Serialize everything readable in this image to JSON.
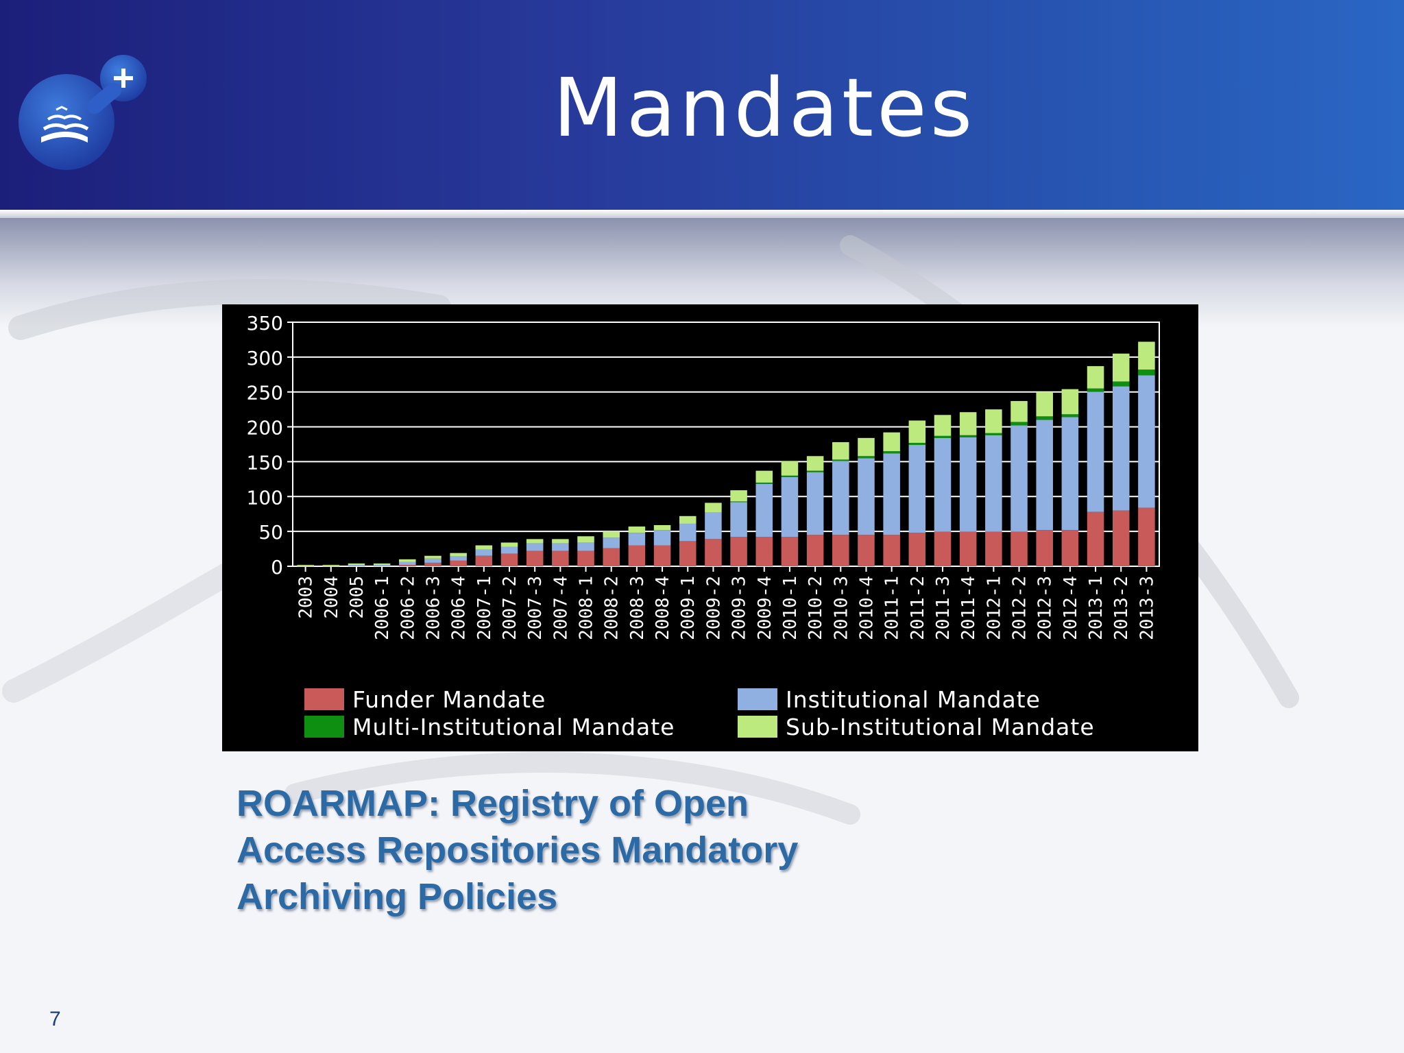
{
  "slide": {
    "title": "Mandates",
    "caption": "ROARMAP: Registry of Open Access Repositories Mandatory Archiving Policies",
    "page_number": "7"
  },
  "colors": {
    "funder": "#c85a5a",
    "institutional": "#8fb0e0",
    "multi_institutional": "#0f8f12",
    "sub_institutional": "#bdea7e",
    "header_start": "#1c1f7a",
    "header_end": "#2a66c4",
    "caption": "#2c6aa6"
  },
  "logo": {
    "icon": "book-with-plus-icon"
  },
  "chart_data": {
    "type": "bar",
    "stacked": true,
    "title": "",
    "xlabel": "",
    "ylabel": "",
    "ylim": [
      0,
      350
    ],
    "yticks": [
      0,
      50,
      100,
      150,
      200,
      250,
      300,
      350
    ],
    "grid": true,
    "legend_position": "bottom",
    "categories": [
      "2003",
      "2004",
      "2005",
      "2006-1",
      "2006-2",
      "2006-3",
      "2006-4",
      "2007-1",
      "2007-2",
      "2007-3",
      "2007-4",
      "2008-1",
      "2008-2",
      "2008-3",
      "2008-4",
      "2009-1",
      "2009-2",
      "2009-3",
      "2009-4",
      "2010-1",
      "2010-2",
      "2010-3",
      "2010-4",
      "2011-1",
      "2011-2",
      "2011-3",
      "2011-4",
      "2012-1",
      "2012-2",
      "2012-3",
      "2012-4",
      "2013-1",
      "2013-2",
      "2013-3"
    ],
    "series": [
      {
        "name": "Funder Mandate",
        "color_key": "funder",
        "values": [
          0,
          0,
          0,
          0,
          2,
          5,
          8,
          15,
          18,
          22,
          22,
          22,
          26,
          30,
          30,
          36,
          39,
          42,
          42,
          42,
          45,
          45,
          45,
          45,
          48,
          50,
          50,
          50,
          50,
          52,
          52,
          78,
          80,
          84
        ]
      },
      {
        "name": "Institutional Mandate",
        "color_key": "institutional",
        "values": [
          1,
          1,
          2,
          2,
          4,
          6,
          6,
          9,
          10,
          11,
          11,
          12,
          15,
          18,
          22,
          25,
          38,
          50,
          76,
          86,
          90,
          106,
          110,
          117,
          126,
          134,
          135,
          138,
          152,
          158,
          162,
          172,
          178,
          190
        ]
      },
      {
        "name": "Multi-Institutional Mandate",
        "color_key": "multi_institutional",
        "values": [
          0,
          0,
          0,
          0,
          0,
          0,
          0,
          0,
          0,
          0,
          0,
          0,
          0,
          0,
          0,
          0,
          0,
          1,
          2,
          2,
          2,
          2,
          3,
          3,
          3,
          3,
          3,
          3,
          5,
          5,
          4,
          5,
          7,
          8
        ]
      },
      {
        "name": "Sub-Institutional Mandate",
        "color_key": "sub_institutional",
        "values": [
          1,
          1,
          2,
          2,
          4,
          4,
          5,
          6,
          6,
          6,
          6,
          9,
          9,
          9,
          7,
          11,
          14,
          16,
          17,
          21,
          21,
          25,
          26,
          27,
          32,
          30,
          33,
          34,
          30,
          35,
          36,
          32,
          40,
          40
        ]
      }
    ]
  }
}
